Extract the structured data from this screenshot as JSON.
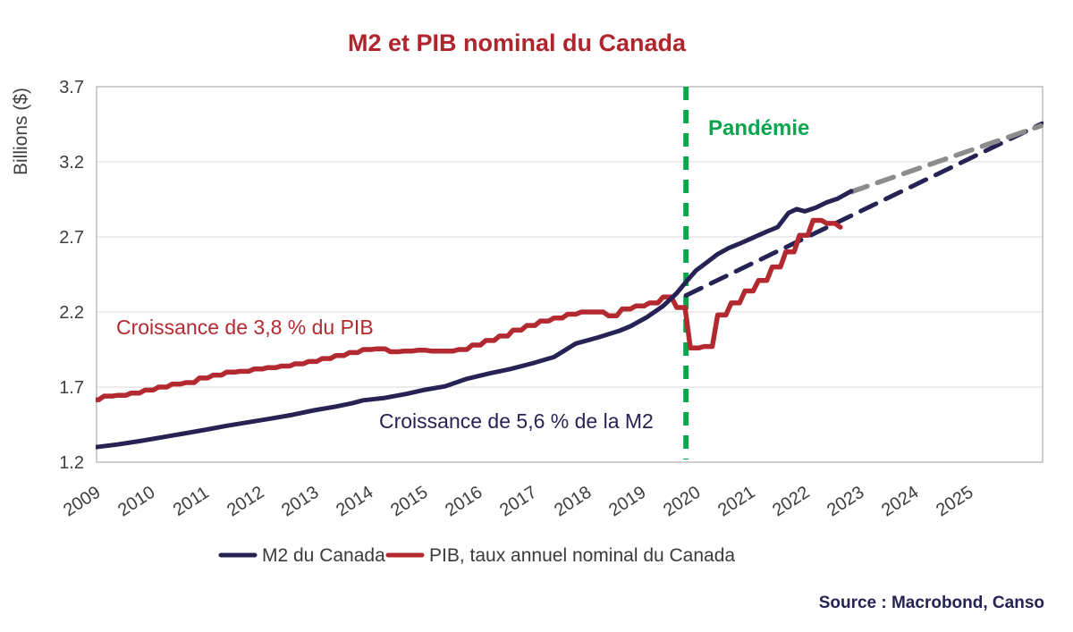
{
  "title": "M2 et PIB nominal du Canada",
  "y_axis": {
    "label": "Billions ($)",
    "ticks": [
      "3.7",
      "3.2",
      "2.7",
      "2.2",
      "1.7",
      "1.2"
    ]
  },
  "x_axis": {
    "ticks": [
      "2009",
      "2010",
      "2011",
      "2012",
      "2013",
      "2014",
      "2015",
      "2016",
      "2017",
      "2018",
      "2019",
      "2020",
      "2021",
      "2022",
      "2023",
      "2024",
      "2025"
    ]
  },
  "annotations": {
    "pandemic": "Pandémie",
    "gdp_growth": "Croissance de 3,8 % du PIB",
    "m2_growth": "Croissance de 5,6 % de la M2"
  },
  "legend": [
    {
      "label": "M2 du Canada",
      "color": "#262254"
    },
    {
      "label": "PIB, taux annuel nominal du Canada",
      "color": "#B22A30"
    }
  ],
  "source": "Source : Macrobond, Canso",
  "colors": {
    "title_red": "#AE252D",
    "gdp_red": "#B22A30",
    "m2_navy": "#262254",
    "projection_gray": "#8C8C8C",
    "pandemic_green": "#0AA64E",
    "gridline": "#D9D9D9",
    "axis_text": "#3D3D3D"
  },
  "chart_data": {
    "type": "line",
    "title": "M2 et PIB nominal du Canada",
    "xlabel": "",
    "ylabel": "Billions ($)",
    "ylim": [
      1.2,
      3.7
    ],
    "xlim": [
      2009,
      2026.6
    ],
    "y_ticks": [
      3.7,
      3.2,
      2.7,
      2.2,
      1.7,
      1.2
    ],
    "x_ticks": [
      2009,
      2010,
      2011,
      2012,
      2013,
      2014,
      2015,
      2016,
      2017,
      2018,
      2019,
      2020,
      2021,
      2022,
      2023,
      2024,
      2025
    ],
    "grid": "horizontal",
    "legend_position": "bottom",
    "pandemic_line_x": 2020.02,
    "series": [
      {
        "id": "m2",
        "name": "M2 du Canada",
        "color": "#262254",
        "style": "solid",
        "render": "line",
        "points": [
          [
            2009.2,
            1.3
          ],
          [
            2009.6,
            1.318
          ],
          [
            2010.0,
            1.34
          ],
          [
            2010.4,
            1.365
          ],
          [
            2010.8,
            1.39
          ],
          [
            2011.2,
            1.415
          ],
          [
            2011.6,
            1.442
          ],
          [
            2012.0,
            1.466
          ],
          [
            2012.4,
            1.49
          ],
          [
            2012.8,
            1.515
          ],
          [
            2013.2,
            1.545
          ],
          [
            2013.6,
            1.57
          ],
          [
            2013.9,
            1.592
          ],
          [
            2014.1,
            1.612
          ],
          [
            2014.5,
            1.628
          ],
          [
            2014.9,
            1.655
          ],
          [
            2015.2,
            1.68
          ],
          [
            2015.6,
            1.705
          ],
          [
            2016.0,
            1.755
          ],
          [
            2016.4,
            1.79
          ],
          [
            2016.8,
            1.82
          ],
          [
            2017.2,
            1.858
          ],
          [
            2017.6,
            1.9
          ],
          [
            2018.0,
            1.99
          ],
          [
            2018.4,
            2.03
          ],
          [
            2018.8,
            2.075
          ],
          [
            2019.0,
            2.105
          ],
          [
            2019.3,
            2.165
          ],
          [
            2019.6,
            2.24
          ],
          [
            2019.85,
            2.325
          ],
          [
            2020.02,
            2.4
          ],
          [
            2020.2,
            2.475
          ],
          [
            2020.4,
            2.53
          ],
          [
            2020.6,
            2.585
          ],
          [
            2020.8,
            2.625
          ],
          [
            2021.0,
            2.655
          ],
          [
            2021.25,
            2.695
          ],
          [
            2021.5,
            2.735
          ],
          [
            2021.7,
            2.765
          ],
          [
            2021.9,
            2.86
          ],
          [
            2022.05,
            2.885
          ],
          [
            2022.2,
            2.87
          ],
          [
            2022.4,
            2.895
          ],
          [
            2022.6,
            2.93
          ],
          [
            2022.8,
            2.955
          ],
          [
            2023.05,
            3.005
          ]
        ]
      },
      {
        "id": "gdp",
        "name": "PIB, taux annuel nominal du Canada",
        "color": "#B22A30",
        "style": "solid",
        "render": "step",
        "t0": 2009.1,
        "dt": 0.25,
        "values": [
          1.615,
          1.64,
          1.645,
          1.66,
          1.68,
          1.7,
          1.72,
          1.73,
          1.76,
          1.78,
          1.8,
          1.805,
          1.82,
          1.83,
          1.84,
          1.855,
          1.87,
          1.89,
          1.91,
          1.93,
          1.95,
          1.955,
          1.935,
          1.94,
          1.945,
          1.94,
          1.94,
          1.95,
          1.98,
          2.01,
          2.04,
          2.08,
          2.11,
          2.14,
          2.16,
          2.185,
          2.2,
          2.2,
          2.175,
          2.22,
          2.24,
          2.26,
          2.3,
          2.23,
          1.96,
          1.97,
          2.18,
          2.26,
          2.34,
          2.41,
          2.5,
          2.6,
          2.71,
          2.81,
          2.79,
          2.765
        ]
      },
      {
        "id": "m2_trend",
        "color": "#262254",
        "style": "dashed",
        "render": "line",
        "points": [
          [
            2020.02,
            2.31
          ],
          [
            2026.55,
            3.455
          ]
        ]
      },
      {
        "id": "m2_proj",
        "color": "#8C8C8C",
        "style": "dashed",
        "render": "line",
        "points": [
          [
            2023.05,
            3.0
          ],
          [
            2026.53,
            3.44
          ]
        ]
      }
    ]
  }
}
